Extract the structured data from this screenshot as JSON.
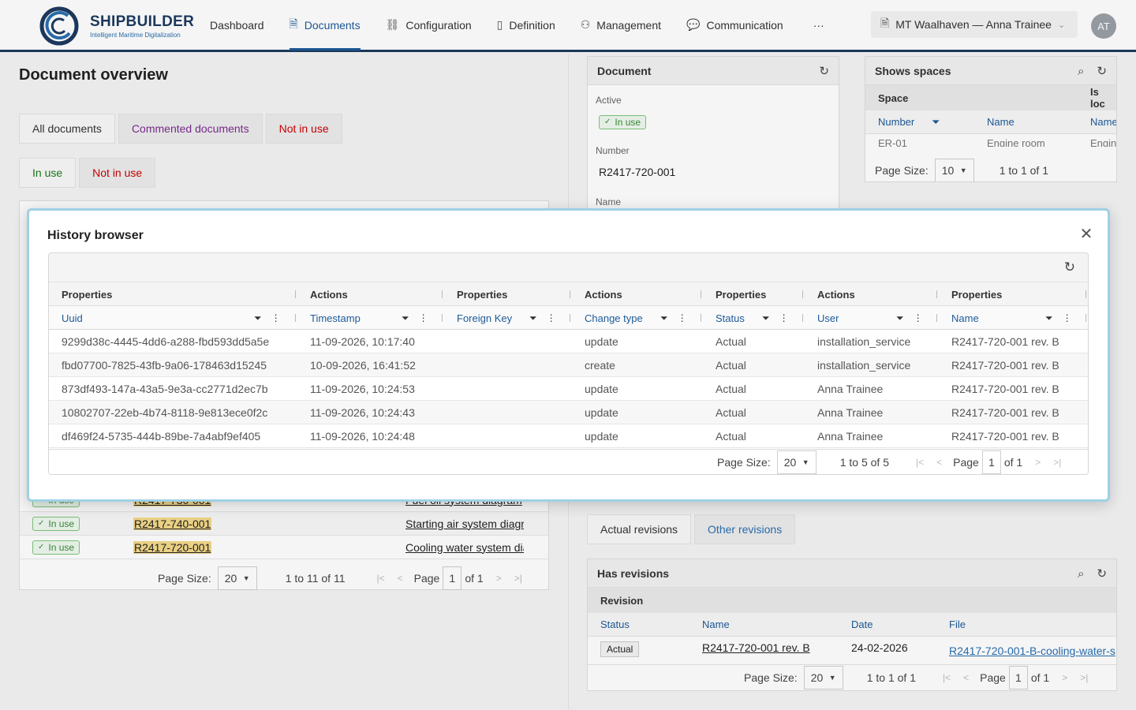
{
  "brand": {
    "name": "SHIPBUILDER",
    "tagline": "Intelligent Maritime Digitalization"
  },
  "nav": {
    "items": [
      {
        "label": "Dashboard",
        "icon": ""
      },
      {
        "label": "Documents",
        "icon": "document-icon"
      },
      {
        "label": "Configuration",
        "icon": "hierarchy-icon"
      },
      {
        "label": "Definition",
        "icon": "page-icon"
      },
      {
        "label": "Management",
        "icon": "user-manage-icon"
      },
      {
        "label": "Communication",
        "icon": "chat-icon"
      }
    ],
    "more": "···",
    "active_index": 1
  },
  "ship_selector": {
    "value": "MT Waalhaven — Anna Trainee"
  },
  "avatar": {
    "initials": "AT"
  },
  "page": {
    "title": "Document overview",
    "tabs": [
      {
        "label": "All documents"
      },
      {
        "label": "Commented documents"
      },
      {
        "label": "Not in use"
      }
    ],
    "subtabs": [
      {
        "label": "In use"
      },
      {
        "label": "Not in use"
      }
    ]
  },
  "left_grid": {
    "rows": [
      {
        "status": "In use",
        "number": "R2417-730-001",
        "name": "Fuel oil system diagram"
      },
      {
        "status": "In use",
        "number": "R2417-740-001",
        "name": "Starting air system diagram"
      },
      {
        "status": "In use",
        "number": "R2417-720-001",
        "name": "Cooling water system diagram"
      }
    ],
    "footer": {
      "page_size_label": "Page Size:",
      "page_size": "20",
      "range": "1 to 11 of 11",
      "page_label": "Page",
      "page": "1",
      "of": "of 1"
    }
  },
  "document_panel": {
    "title": "Document",
    "active_label": "Active",
    "active_value": "In use",
    "number_label": "Number",
    "number_value": "R2417-720-001",
    "name_label": "Name"
  },
  "spaces_panel": {
    "title": "Shows spaces",
    "group_space": "Space",
    "group_is_located": "Is loc",
    "col_number": "Number",
    "col_name": "Name",
    "col_name2": "Name",
    "row": {
      "number": "ER-01",
      "name": "Engine room",
      "name2": "Engin"
    },
    "footer": {
      "page_size_label": "Page Size:",
      "page_size": "10",
      "range": "1 to 1 of 1"
    }
  },
  "revision_tabs": [
    {
      "label": "Actual revisions"
    },
    {
      "label": "Other revisions"
    }
  ],
  "revisions_panel": {
    "title": "Has revisions",
    "group": "Revision",
    "cols": {
      "status": "Status",
      "name": "Name",
      "date": "Date",
      "file": "File"
    },
    "row": {
      "status": "Actual",
      "name": "R2417-720-001 rev. B",
      "date": "24-02-2026",
      "file": "R2417-720-001-B-cooling-water-s"
    },
    "footer": {
      "page_size_label": "Page Size:",
      "page_size": "20",
      "range": "1 to 1 of 1",
      "page_label": "Page",
      "page": "1",
      "of": "of 1"
    }
  },
  "modal": {
    "title": "History browser",
    "groups": [
      "Properties",
      "Actions",
      "Properties",
      "Actions",
      "Properties",
      "Actions",
      "Properties"
    ],
    "columns": [
      "Uuid",
      "Timestamp",
      "Foreign Key",
      "Change type",
      "Status",
      "User",
      "Name"
    ],
    "rows": [
      {
        "uuid": "9299d38c-4445-4dd6-a288-fbd593dd5a5e",
        "timestamp": "11-09-2026, 10:17:40",
        "fk": "",
        "change": "update",
        "status": "Actual",
        "user": "installation_service",
        "name": "R2417-720-001 rev. B"
      },
      {
        "uuid": "fbd07700-7825-43fb-9a06-178463d15245",
        "timestamp": "10-09-2026, 16:41:52",
        "fk": "",
        "change": "create",
        "status": "Actual",
        "user": "installation_service",
        "name": "R2417-720-001 rev. B"
      },
      {
        "uuid": "873df493-147a-43a5-9e3a-cc2771d2ec7b",
        "timestamp": "11-09-2026, 10:24:53",
        "fk": "",
        "change": "update",
        "status": "Actual",
        "user": "Anna Trainee",
        "name": "R2417-720-001 rev. B"
      },
      {
        "uuid": "10802707-22eb-4b74-8118-9e813ece0f2c",
        "timestamp": "11-09-2026, 10:24:43",
        "fk": "",
        "change": "update",
        "status": "Actual",
        "user": "Anna Trainee",
        "name": "R2417-720-001 rev. B"
      },
      {
        "uuid": "df469f24-5735-444b-89be-7a4abf9ef405",
        "timestamp": "11-09-2026, 10:24:48",
        "fk": "",
        "change": "update",
        "status": "Actual",
        "user": "Anna Trainee",
        "name": "R2417-720-001 rev. B"
      }
    ],
    "footer": {
      "page_size_label": "Page Size:",
      "page_size": "20",
      "range": "1 to 5 of 5",
      "page_label": "Page",
      "page": "1",
      "of": "of 1"
    }
  }
}
